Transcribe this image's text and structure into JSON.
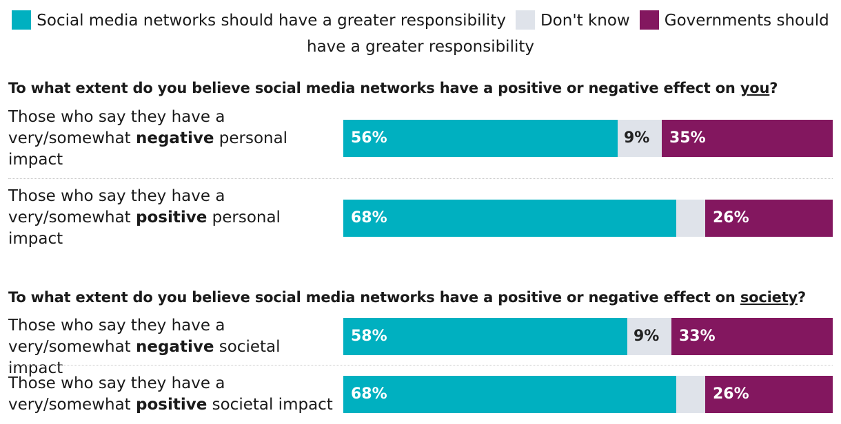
{
  "colors": {
    "social": "#00b0c0",
    "dontknow": "#dfe3ea",
    "gov": "#83175f",
    "label_light": "#ffffff",
    "label_dark": "#222222"
  },
  "legend": {
    "social": "Social media networks should have a greater responsibility",
    "dontknow": "Don't know",
    "gov_part1": "Governments should",
    "gov_part2": "have a greater responsibility"
  },
  "q1": {
    "prefix": "To what extent do you believe social media networks have a positive or negative effect on ",
    "emph": "you",
    "suffix": "?"
  },
  "q2": {
    "prefix": "To what extent do you believe social media networks have a positive or negative effect on ",
    "emph": "society",
    "suffix": "?"
  },
  "rows": [
    {
      "pre": "Those who say they have a very/somewhat ",
      "bold": "negative",
      "post": " personal impact"
    },
    {
      "pre": "Those who say they have a very/somewhat ",
      "bold": "positive",
      "post": " personal impact"
    },
    {
      "pre": "Those who say they have a very/somewhat ",
      "bold": "negative",
      "post": " societal impact"
    },
    {
      "pre": "Those who say they have a very/somewhat ",
      "bold": "positive",
      "post": " societal impact"
    }
  ],
  "chart_data": {
    "type": "bar",
    "orientation": "horizontal-stacked-100",
    "series_names": [
      "Social media networks should have a greater responsibility",
      "Don't know",
      "Governments should have a greater responsibility"
    ],
    "groups": [
      {
        "question": "To what extent do you believe social media networks have a positive or negative effect on you?"
      },
      {
        "question": "To what extent do you believe social media networks have a positive or negative effect on society?"
      }
    ],
    "bars": [
      {
        "values": [
          56,
          9,
          35
        ],
        "labels": [
          "56%",
          "9%",
          "35%"
        ]
      },
      {
        "values": [
          68,
          6,
          26
        ],
        "labels": [
          "68%",
          "",
          "26%"
        ]
      },
      {
        "values": [
          58,
          9,
          33
        ],
        "labels": [
          "58%",
          "9%",
          "33%"
        ]
      },
      {
        "values": [
          68,
          6,
          26
        ],
        "labels": [
          "68%",
          "",
          "26%"
        ]
      }
    ]
  }
}
